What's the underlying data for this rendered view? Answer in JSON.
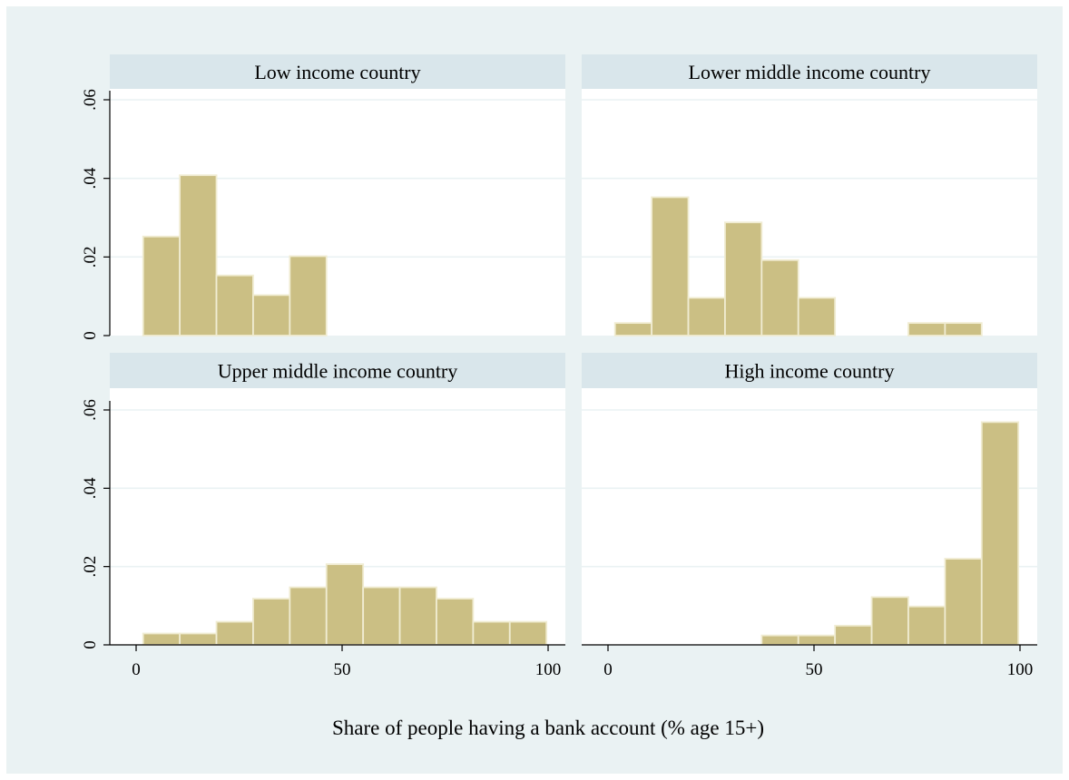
{
  "chart_data": {
    "type": "bar",
    "title": "",
    "xlabel": "Share of people having a bank account (% age 15+)",
    "ylabel": "",
    "xlim": [
      0,
      100
    ],
    "ylim": [
      0,
      0.06
    ],
    "grid": true,
    "x_ticks": [
      "0",
      "50",
      "100"
    ],
    "y_ticks": [
      "0",
      ".02",
      ".04",
      ".06"
    ],
    "bar_color": "#cbbf84",
    "background_color": "#eaf2f3",
    "strip_color": "#d9e6eb",
    "panels": [
      {
        "title": "Low income country",
        "bars": [
          {
            "x0": 1.7,
            "x1": 10.6,
            "density": 0.0252
          },
          {
            "x0": 10.6,
            "x1": 19.5,
            "density": 0.0408
          },
          {
            "x0": 19.5,
            "x1": 28.4,
            "density": 0.0153
          },
          {
            "x0": 28.4,
            "x1": 37.3,
            "density": 0.0103
          },
          {
            "x0": 37.3,
            "x1": 46.2,
            "density": 0.0202
          }
        ]
      },
      {
        "title": "Lower middle income country",
        "bars": [
          {
            "x0": 1.7,
            "x1": 10.6,
            "density": 0.0032
          },
          {
            "x0": 10.6,
            "x1": 19.5,
            "density": 0.0352
          },
          {
            "x0": 19.5,
            "x1": 28.4,
            "density": 0.0096
          },
          {
            "x0": 28.4,
            "x1": 37.3,
            "density": 0.0288
          },
          {
            "x0": 37.3,
            "x1": 46.2,
            "density": 0.0192
          },
          {
            "x0": 46.2,
            "x1": 55.1,
            "density": 0.0096
          },
          {
            "x0": 72.9,
            "x1": 81.8,
            "density": 0.0032
          },
          {
            "x0": 81.8,
            "x1": 90.7,
            "density": 0.0032
          }
        ]
      },
      {
        "title": "Upper middle income country",
        "bars": [
          {
            "x0": 1.7,
            "x1": 10.6,
            "density": 0.0029
          },
          {
            "x0": 10.6,
            "x1": 19.5,
            "density": 0.0029
          },
          {
            "x0": 19.5,
            "x1": 28.4,
            "density": 0.0059
          },
          {
            "x0": 28.4,
            "x1": 37.3,
            "density": 0.0118
          },
          {
            "x0": 37.3,
            "x1": 46.2,
            "density": 0.0147
          },
          {
            "x0": 46.2,
            "x1": 55.1,
            "density": 0.0206
          },
          {
            "x0": 55.1,
            "x1": 64.0,
            "density": 0.0147
          },
          {
            "x0": 64.0,
            "x1": 72.9,
            "density": 0.0147
          },
          {
            "x0": 72.9,
            "x1": 81.8,
            "density": 0.0118
          },
          {
            "x0": 81.8,
            "x1": 90.7,
            "density": 0.0059
          },
          {
            "x0": 90.7,
            "x1": 99.6,
            "density": 0.0059
          }
        ]
      },
      {
        "title": "High income country",
        "bars": [
          {
            "x0": 37.3,
            "x1": 46.2,
            "density": 0.0024
          },
          {
            "x0": 46.2,
            "x1": 55.1,
            "density": 0.0024
          },
          {
            "x0": 55.1,
            "x1": 64.0,
            "density": 0.0049
          },
          {
            "x0": 64.0,
            "x1": 72.9,
            "density": 0.0122
          },
          {
            "x0": 72.9,
            "x1": 81.8,
            "density": 0.0098
          },
          {
            "x0": 81.8,
            "x1": 90.7,
            "density": 0.022
          },
          {
            "x0": 90.7,
            "x1": 99.6,
            "density": 0.0569
          }
        ]
      }
    ]
  }
}
